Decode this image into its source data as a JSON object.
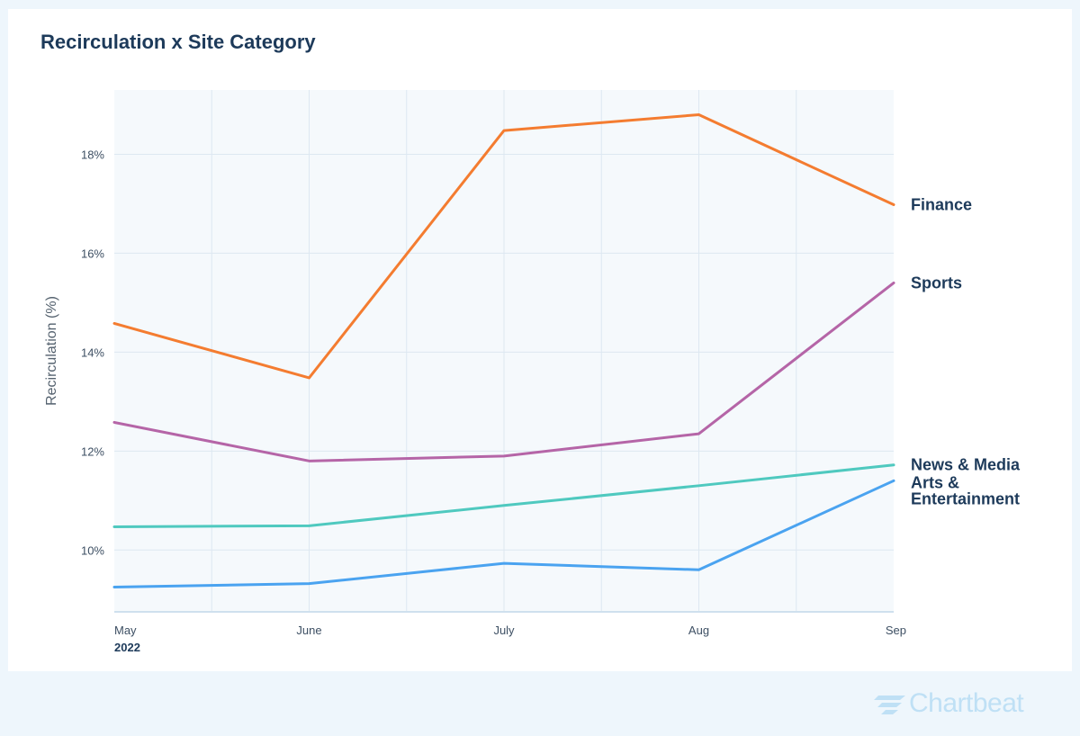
{
  "chart_data": {
    "type": "line",
    "title": "Recirculation x Site Category",
    "ylabel": "Recirculation (%)",
    "xlabel": "",
    "categories": [
      "May",
      "June",
      "July",
      "Aug",
      "Sep"
    ],
    "year_label": "2022",
    "ylim": [
      8.75,
      19.3
    ],
    "y_ticks": [
      10,
      12,
      14,
      16,
      18
    ],
    "y_tick_labels": [
      "10%",
      "12%",
      "14%",
      "16%",
      "18%"
    ],
    "grid": true,
    "legend": "end-labels-right",
    "series": [
      {
        "name": "Finance",
        "color": "#f47c30",
        "values": [
          14.58,
          13.48,
          18.48,
          18.8,
          16.98
        ]
      },
      {
        "name": "Sports",
        "color": "#b565a7",
        "values": [
          12.58,
          11.8,
          11.9,
          12.35,
          15.4
        ]
      },
      {
        "name": "News & Media",
        "color": "#4fc9bf",
        "values": [
          10.47,
          10.49,
          10.9,
          11.3,
          11.72
        ]
      },
      {
        "name": "Arts & Entertainment",
        "color": "#4aa3f0",
        "values": [
          9.25,
          9.32,
          9.73,
          9.6,
          11.4
        ]
      }
    ]
  },
  "branding": {
    "logo_text": "Chartbeat"
  }
}
